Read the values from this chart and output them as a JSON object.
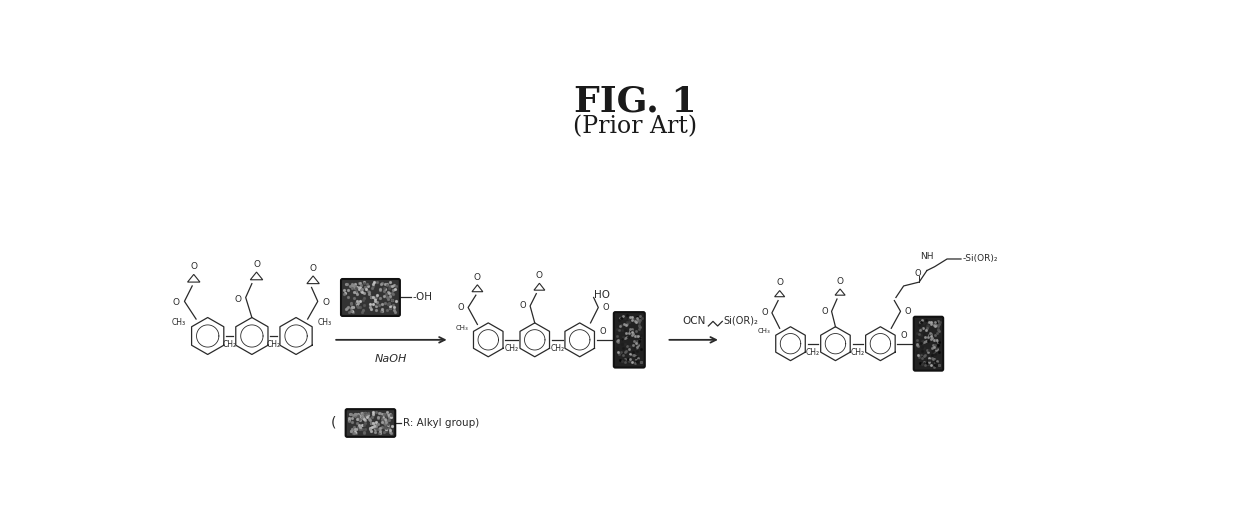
{
  "title": "FIG. 1",
  "subtitle": "(Prior Art)",
  "title_fontsize": 26,
  "subtitle_fontsize": 17,
  "bg_color": "#ffffff",
  "text_color": "#1a1a1a",
  "fig_width": 12.4,
  "fig_height": 5.22,
  "dpi": 100,
  "reagent1": "NaOH",
  "reagent2": "OCN",
  "reagent2b": "Si(OR)₂",
  "oh_label": "-OH",
  "ho_label": "HO",
  "siOR_label": "-Si(OR)₂",
  "legend_label": "R: Alkyl group)",
  "ch2_label": "CH₂",
  "ch_label": "CH",
  "o_label": "O",
  "legend_open": "("
}
